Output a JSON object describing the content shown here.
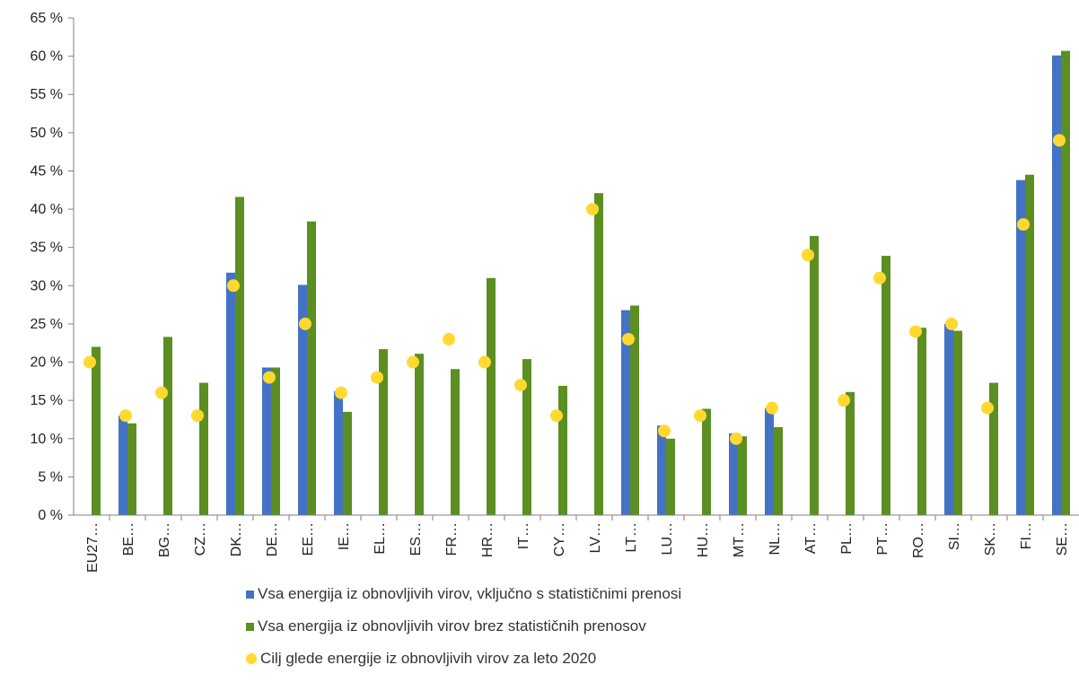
{
  "chart_data": {
    "type": "bar",
    "title": "",
    "xlabel": "",
    "ylabel": "",
    "ylim": [
      0,
      65
    ],
    "yticks": [
      0,
      5,
      10,
      15,
      20,
      25,
      30,
      35,
      40,
      45,
      50,
      55,
      60,
      65
    ],
    "ytick_labels": [
      "0 %",
      "5 %",
      "10 %",
      "15 %",
      "20 %",
      "25 %",
      "30 %",
      "35 %",
      "40 %",
      "45 %",
      "50 %",
      "55 %",
      "60 %",
      "65 %"
    ],
    "grid": false,
    "legend_position": "bottom",
    "categories": [
      "EU27…",
      "BE…",
      "BG…",
      "CZ…",
      "DK…",
      "DE…",
      "EE…",
      "IE…",
      "EL…",
      "ES…",
      "FR…",
      "HR…",
      "IT…",
      "CY…",
      "LV…",
      "LT…",
      "LU…",
      "HU…",
      "MT…",
      "NL…",
      "AT…",
      "PL…",
      "PT…",
      "RO…",
      "SI…",
      "SK…",
      "FI…",
      "SE…"
    ],
    "series": [
      {
        "name": "Vsa energija iz obnovljivih virov, vključno s statističnimi prenosi",
        "type": "bar",
        "color": "#4472c4",
        "values": [
          null,
          13,
          null,
          null,
          31.7,
          19.3,
          30.1,
          16.2,
          null,
          null,
          null,
          null,
          null,
          null,
          null,
          26.8,
          11.7,
          null,
          10.7,
          14.0,
          null,
          null,
          null,
          null,
          25.0,
          null,
          43.8,
          60.1
        ]
      },
      {
        "name": "Vsa energija iz obnovljivih virov brez statističnih prenosov",
        "type": "bar",
        "color": "#5b8f22",
        "values": [
          22.0,
          12.0,
          23.3,
          17.3,
          41.6,
          19.3,
          38.4,
          13.5,
          21.7,
          21.1,
          19.1,
          31.0,
          20.4,
          16.9,
          42.1,
          27.4,
          10.0,
          13.9,
          10.3,
          11.5,
          36.5,
          16.1,
          33.9,
          24.5,
          24.1,
          17.3,
          44.5,
          60.7
        ]
      },
      {
        "name": "Cilj glede energije iz obnovljivih virov za leto 2020",
        "type": "scatter",
        "color": "#ffd92f",
        "values": [
          20,
          13,
          16,
          13,
          30,
          18,
          25,
          16,
          18,
          20,
          23,
          20,
          17,
          13,
          40,
          23,
          11,
          13,
          10,
          14,
          34,
          15,
          31,
          24,
          25,
          14,
          38,
          49
        ]
      }
    ]
  }
}
